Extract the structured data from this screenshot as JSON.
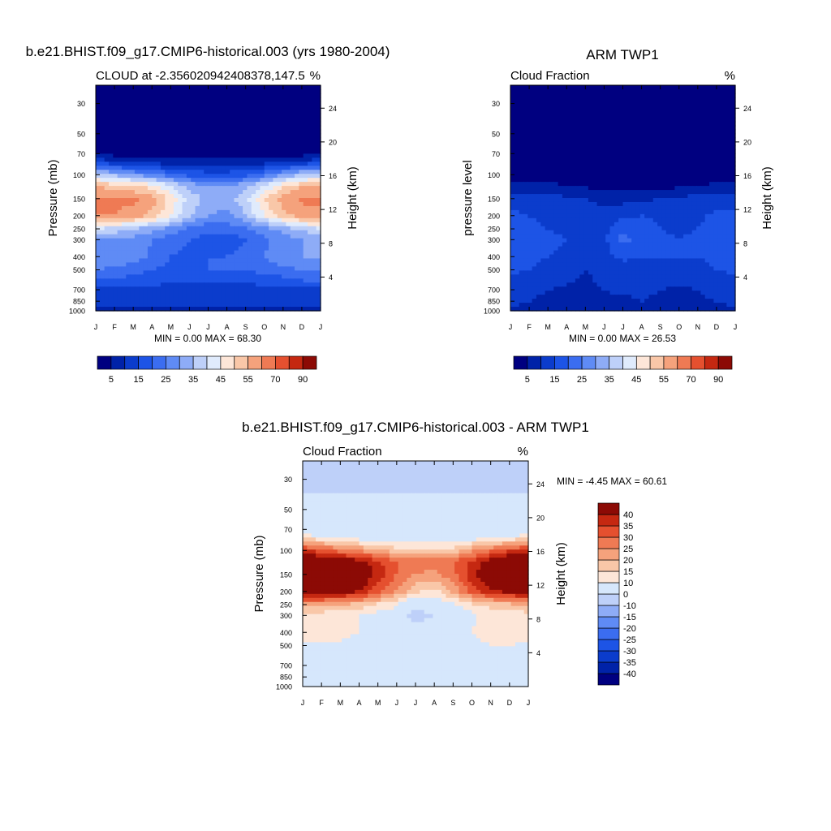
{
  "page": {
    "title_model": "b.e21.BHIST.f09_g17.CMIP6-historical.003 (yrs 1980-2004)",
    "title_obs": "ARM TWP1",
    "title_diff": "b.e21.BHIST.f09_g17.CMIP6-historical.003 - ARM TWP1"
  },
  "panels": {
    "model": {
      "left_string": "CLOUD at -2.356020942408378,147.5",
      "right_string": "%",
      "ylabel": "Pressure (mb)",
      "right_label": "Height (km)",
      "stats": "MIN =   0.00 MAX =  68.30"
    },
    "obs": {
      "left_string": "Cloud Fraction",
      "right_string": "%",
      "ylabel": "pressure level",
      "right_label": "Height (km)",
      "stats": "MIN =   0.00 MAX =  26.53"
    },
    "diff": {
      "left_string": "Cloud Fraction",
      "right_string": "%",
      "ylabel": "Pressure (mb)",
      "right_label": "Height (km)",
      "stats": "MIN =  -4.45 MAX =  60.61"
    }
  },
  "chart_data": [
    {
      "type": "heatmap",
      "title": "b.e21.BHIST.f09_g17.CMIP6-historical.003 (yrs 1980-2004)",
      "subtitle": "CLOUD at -2.356020942408378,147.5",
      "units": "%",
      "ylabel": "Pressure (mb)",
      "y2label": "Height (km)",
      "x_ticks": [
        "J",
        "F",
        "M",
        "A",
        "M",
        "J",
        "J",
        "A",
        "S",
        "O",
        "N",
        "D",
        "J"
      ],
      "y_ticks": [
        30,
        50,
        70,
        100,
        150,
        200,
        250,
        300,
        400,
        500,
        700,
        850,
        1000
      ],
      "y2_ticks": [
        24,
        20,
        16,
        12,
        8,
        4
      ],
      "y_scale": "log",
      "ylim": [
        1000,
        22
      ],
      "levels": [
        5,
        10,
        15,
        20,
        25,
        30,
        35,
        40,
        45,
        50,
        55,
        60,
        70,
        80,
        90
      ],
      "colorbar_labels": [
        "5",
        "15",
        "25",
        "35",
        "45",
        "55",
        "70",
        "90"
      ],
      "colors": [
        "#000080",
        "#0022a8",
        "#0b3ccc",
        "#1d54e6",
        "#3b6df0",
        "#5f8bf5",
        "#8eacf7",
        "#bed0f9",
        "#e0ebfc",
        "#fde6d8",
        "#f9c7a8",
        "#f5a27c",
        "#ef7a54",
        "#e5502f",
        "#c52811",
        "#8c0a05"
      ],
      "stats": {
        "min": 0.0,
        "max": 68.3
      },
      "profile_pressure": [
        20,
        30,
        50,
        70,
        80,
        100,
        120,
        150,
        200,
        250,
        300,
        400,
        500,
        600,
        700,
        850,
        1000
      ],
      "months": [
        "J",
        "F",
        "M",
        "A",
        "M",
        "J",
        "J",
        "A",
        "S",
        "O",
        "N",
        "D",
        "J"
      ],
      "values": [
        [
          0,
          0,
          0,
          0,
          0,
          0,
          0,
          0,
          0,
          0,
          0,
          0,
          0
        ],
        [
          0,
          0,
          0,
          0,
          0,
          0,
          0,
          0,
          0,
          0,
          0,
          0,
          0
        ],
        [
          1,
          1,
          1,
          1,
          1,
          1,
          1,
          1,
          1,
          1,
          1,
          1,
          1
        ],
        [
          4,
          3,
          2,
          2,
          2,
          2,
          2,
          2,
          2,
          2,
          2,
          3,
          4
        ],
        [
          13,
          10,
          8,
          7,
          7,
          7,
          7,
          7,
          7,
          7,
          8,
          10,
          13
        ],
        [
          38,
          34,
          30,
          26,
          22,
          18,
          17,
          17,
          18,
          24,
          30,
          36,
          38
        ],
        [
          55,
          52,
          50,
          47,
          40,
          33,
          30,
          30,
          33,
          40,
          48,
          54,
          55
        ],
        [
          60,
          61,
          61,
          58,
          48,
          38,
          33,
          33,
          38,
          50,
          58,
          61,
          60
        ],
        [
          60,
          60,
          58,
          53,
          45,
          36,
          30,
          28,
          35,
          45,
          53,
          58,
          60
        ],
        [
          40,
          38,
          35,
          32,
          28,
          24,
          21,
          22,
          24,
          28,
          32,
          36,
          40
        ],
        [
          30,
          29,
          28,
          25,
          22,
          20,
          18,
          17,
          20,
          24,
          28,
          30,
          30
        ],
        [
          30,
          30,
          28,
          24,
          20,
          19,
          20,
          20,
          22,
          25,
          28,
          30,
          30
        ],
        [
          25,
          24,
          22,
          20,
          18,
          18,
          20,
          20,
          20,
          22,
          24,
          25,
          25
        ],
        [
          20,
          19,
          18,
          17,
          16,
          16,
          16,
          16,
          16,
          17,
          18,
          20,
          20
        ],
        [
          14,
          14,
          14,
          13,
          13,
          13,
          13,
          12,
          13,
          13,
          14,
          14,
          14
        ],
        [
          12,
          12,
          12,
          12,
          12,
          12,
          12,
          11,
          12,
          12,
          12,
          12,
          12
        ],
        [
          9,
          9,
          9,
          9,
          9,
          9,
          9,
          9,
          9,
          9,
          9,
          9,
          9
        ]
      ]
    },
    {
      "type": "heatmap",
      "title": "ARM TWP1",
      "subtitle": "Cloud Fraction",
      "units": "%",
      "ylabel": "pressure level",
      "y2label": "Height (km)",
      "x_ticks": [
        "J",
        "F",
        "M",
        "A",
        "M",
        "J",
        "J",
        "A",
        "S",
        "O",
        "N",
        "D",
        "J"
      ],
      "y_ticks": [
        30,
        50,
        70,
        100,
        150,
        200,
        250,
        300,
        400,
        500,
        700,
        850,
        1000
      ],
      "y2_ticks": [
        24,
        20,
        16,
        12,
        8,
        4
      ],
      "y_scale": "log",
      "ylim": [
        1000,
        22
      ],
      "levels": [
        5,
        10,
        15,
        20,
        25,
        30,
        35,
        40,
        45,
        50,
        55,
        60,
        70,
        80,
        90
      ],
      "colorbar_labels": [
        "5",
        "15",
        "25",
        "35",
        "45",
        "55",
        "70",
        "90"
      ],
      "colors": [
        "#000080",
        "#0022a8",
        "#0b3ccc",
        "#1d54e6",
        "#3b6df0",
        "#5f8bf5",
        "#8eacf7",
        "#bed0f9",
        "#e0ebfc",
        "#fde6d8",
        "#f9c7a8",
        "#f5a27c",
        "#ef7a54",
        "#e5502f",
        "#c52811",
        "#8c0a05"
      ],
      "stats": {
        "min": 0.0,
        "max": 26.53
      },
      "profile_pressure": [
        20,
        30,
        50,
        70,
        80,
        100,
        120,
        150,
        200,
        250,
        300,
        400,
        500,
        600,
        700,
        850,
        1000
      ],
      "months": [
        "J",
        "F",
        "M",
        "A",
        "M",
        "J",
        "J",
        "A",
        "S",
        "O",
        "N",
        "D",
        "J"
      ],
      "values": [
        [
          0,
          0,
          0,
          0,
          0,
          0,
          0,
          0,
          0,
          0,
          0,
          0,
          0
        ],
        [
          0,
          0,
          0,
          0,
          0,
          0,
          0,
          0,
          0,
          0,
          0,
          0,
          0
        ],
        [
          0,
          0,
          0,
          0,
          0,
          0,
          0,
          0,
          0,
          0,
          0,
          0,
          0
        ],
        [
          0,
          0,
          0,
          0,
          0,
          0,
          0,
          0,
          0,
          0,
          0,
          0,
          0
        ],
        [
          0,
          0,
          0,
          0,
          0,
          0,
          0,
          0,
          0,
          0,
          0,
          0,
          0
        ],
        [
          2,
          2,
          2,
          2,
          1,
          1,
          1,
          1,
          1,
          1,
          1,
          2,
          2
        ],
        [
          7,
          6,
          6,
          5,
          4,
          3,
          3,
          3,
          3,
          4,
          5,
          6,
          7
        ],
        [
          13,
          12,
          12,
          11,
          10,
          8,
          8,
          9,
          10,
          11,
          12,
          13,
          13
        ],
        [
          16,
          15,
          14,
          13,
          13,
          12,
          14,
          15,
          14,
          13,
          14,
          16,
          16
        ],
        [
          17,
          16,
          15,
          14,
          14,
          13,
          19,
          17,
          15,
          14,
          15,
          18,
          17
        ],
        [
          18,
          17,
          16,
          15,
          14,
          14,
          22,
          17,
          16,
          15,
          16,
          20,
          18
        ],
        [
          17,
          16,
          15,
          14,
          12,
          13,
          16,
          15,
          15,
          15,
          15,
          16,
          17
        ],
        [
          16,
          15,
          14,
          13,
          10,
          12,
          13,
          13,
          13,
          14,
          14,
          15,
          16
        ],
        [
          14,
          13,
          12,
          11,
          9,
          11,
          12,
          12,
          12,
          11,
          12,
          13,
          14
        ],
        [
          13,
          12,
          10,
          9,
          8,
          10,
          11,
          11,
          10,
          9,
          10,
          12,
          13
        ],
        [
          11,
          10,
          8,
          8,
          8,
          9,
          9,
          10,
          9,
          8,
          9,
          10,
          11
        ],
        [
          9,
          9,
          9,
          9,
          9,
          9,
          9,
          9,
          9,
          9,
          9,
          9,
          9
        ]
      ]
    },
    {
      "type": "heatmap",
      "title": "b.e21.BHIST.f09_g17.CMIP6-historical.003 - ARM TWP1",
      "subtitle": "Cloud Fraction",
      "units": "%",
      "ylabel": "Pressure (mb)",
      "y2label": "Height (km)",
      "x_ticks": [
        "J",
        "F",
        "M",
        "A",
        "M",
        "J",
        "J",
        "A",
        "S",
        "O",
        "N",
        "D",
        "J"
      ],
      "y_ticks": [
        30,
        50,
        70,
        100,
        150,
        200,
        250,
        300,
        400,
        500,
        700,
        850,
        1000
      ],
      "y2_ticks": [
        24,
        20,
        16,
        12,
        8,
        4
      ],
      "y_scale": "log",
      "ylim": [
        1000,
        22
      ],
      "levels": [
        -40,
        -35,
        -30,
        -25,
        -20,
        -15,
        -10,
        0,
        10,
        15,
        20,
        25,
        30,
        35,
        40
      ],
      "colorbar_labels": [
        "40",
        "35",
        "30",
        "25",
        "20",
        "15",
        "10",
        "0",
        "-10",
        "-15",
        "-20",
        "-25",
        "-30",
        "-35",
        "-40"
      ],
      "colors": [
        "#000080",
        "#0022a8",
        "#0b3ccc",
        "#1d54e6",
        "#3b6df0",
        "#5f8bf5",
        "#8eacf7",
        "#bed0f9",
        "#d6e7fc",
        "#fde6d8",
        "#f9c7a8",
        "#f5a27c",
        "#ef7a54",
        "#e5502f",
        "#c52811",
        "#8c0a05"
      ],
      "stats": {
        "min": -4.45,
        "max": 60.61
      },
      "profile_pressure": [
        20,
        30,
        50,
        70,
        80,
        100,
        120,
        150,
        200,
        250,
        300,
        400,
        500,
        600,
        700,
        850,
        1000
      ],
      "months": [
        "J",
        "F",
        "M",
        "A",
        "M",
        "J",
        "J",
        "A",
        "S",
        "O",
        "N",
        "D",
        "J"
      ],
      "values": [
        [
          -1,
          -1,
          -1,
          -1,
          -1,
          -1,
          -1,
          -1,
          -1,
          -1,
          -1,
          -1,
          -1
        ],
        [
          -1,
          -1,
          -1,
          -1,
          -1,
          -1,
          -1,
          -1,
          -1,
          -1,
          -1,
          -1,
          -1
        ],
        [
          1,
          1,
          1,
          1,
          1,
          1,
          1,
          1,
          1,
          1,
          1,
          1,
          1
        ],
        [
          4,
          3,
          2,
          2,
          2,
          2,
          2,
          2,
          2,
          2,
          2,
          3,
          4
        ],
        [
          13,
          10,
          8,
          7,
          7,
          7,
          7,
          7,
          7,
          7,
          8,
          10,
          13
        ],
        [
          36,
          32,
          28,
          24,
          21,
          17,
          16,
          16,
          17,
          23,
          29,
          34,
          36
        ],
        [
          48,
          46,
          44,
          42,
          36,
          30,
          27,
          27,
          30,
          36,
          43,
          48,
          48
        ],
        [
          47,
          49,
          49,
          47,
          38,
          30,
          25,
          24,
          28,
          39,
          46,
          48,
          47
        ],
        [
          44,
          45,
          44,
          40,
          32,
          24,
          16,
          13,
          21,
          32,
          39,
          42,
          44
        ],
        [
          23,
          22,
          20,
          18,
          14,
          11,
          2,
          5,
          9,
          14,
          17,
          18,
          23
        ],
        [
          12,
          12,
          12,
          10,
          8,
          6,
          -4,
          0,
          4,
          9,
          12,
          10,
          12
        ],
        [
          13,
          14,
          13,
          10,
          8,
          6,
          4,
          5,
          7,
          10,
          13,
          14,
          13
        ],
        [
          9,
          9,
          8,
          7,
          8,
          6,
          7,
          7,
          7,
          8,
          10,
          10,
          9
        ],
        [
          6,
          6,
          6,
          6,
          7,
          5,
          4,
          4,
          4,
          6,
          6,
          7,
          6
        ],
        [
          1,
          2,
          4,
          4,
          5,
          3,
          2,
          1,
          3,
          4,
          4,
          2,
          1
        ],
        [
          1,
          2,
          4,
          4,
          4,
          3,
          3,
          1,
          3,
          4,
          3,
          2,
          1
        ],
        [
          0,
          0,
          0,
          0,
          0,
          0,
          0,
          0,
          0,
          0,
          0,
          0,
          0
        ]
      ]
    }
  ]
}
